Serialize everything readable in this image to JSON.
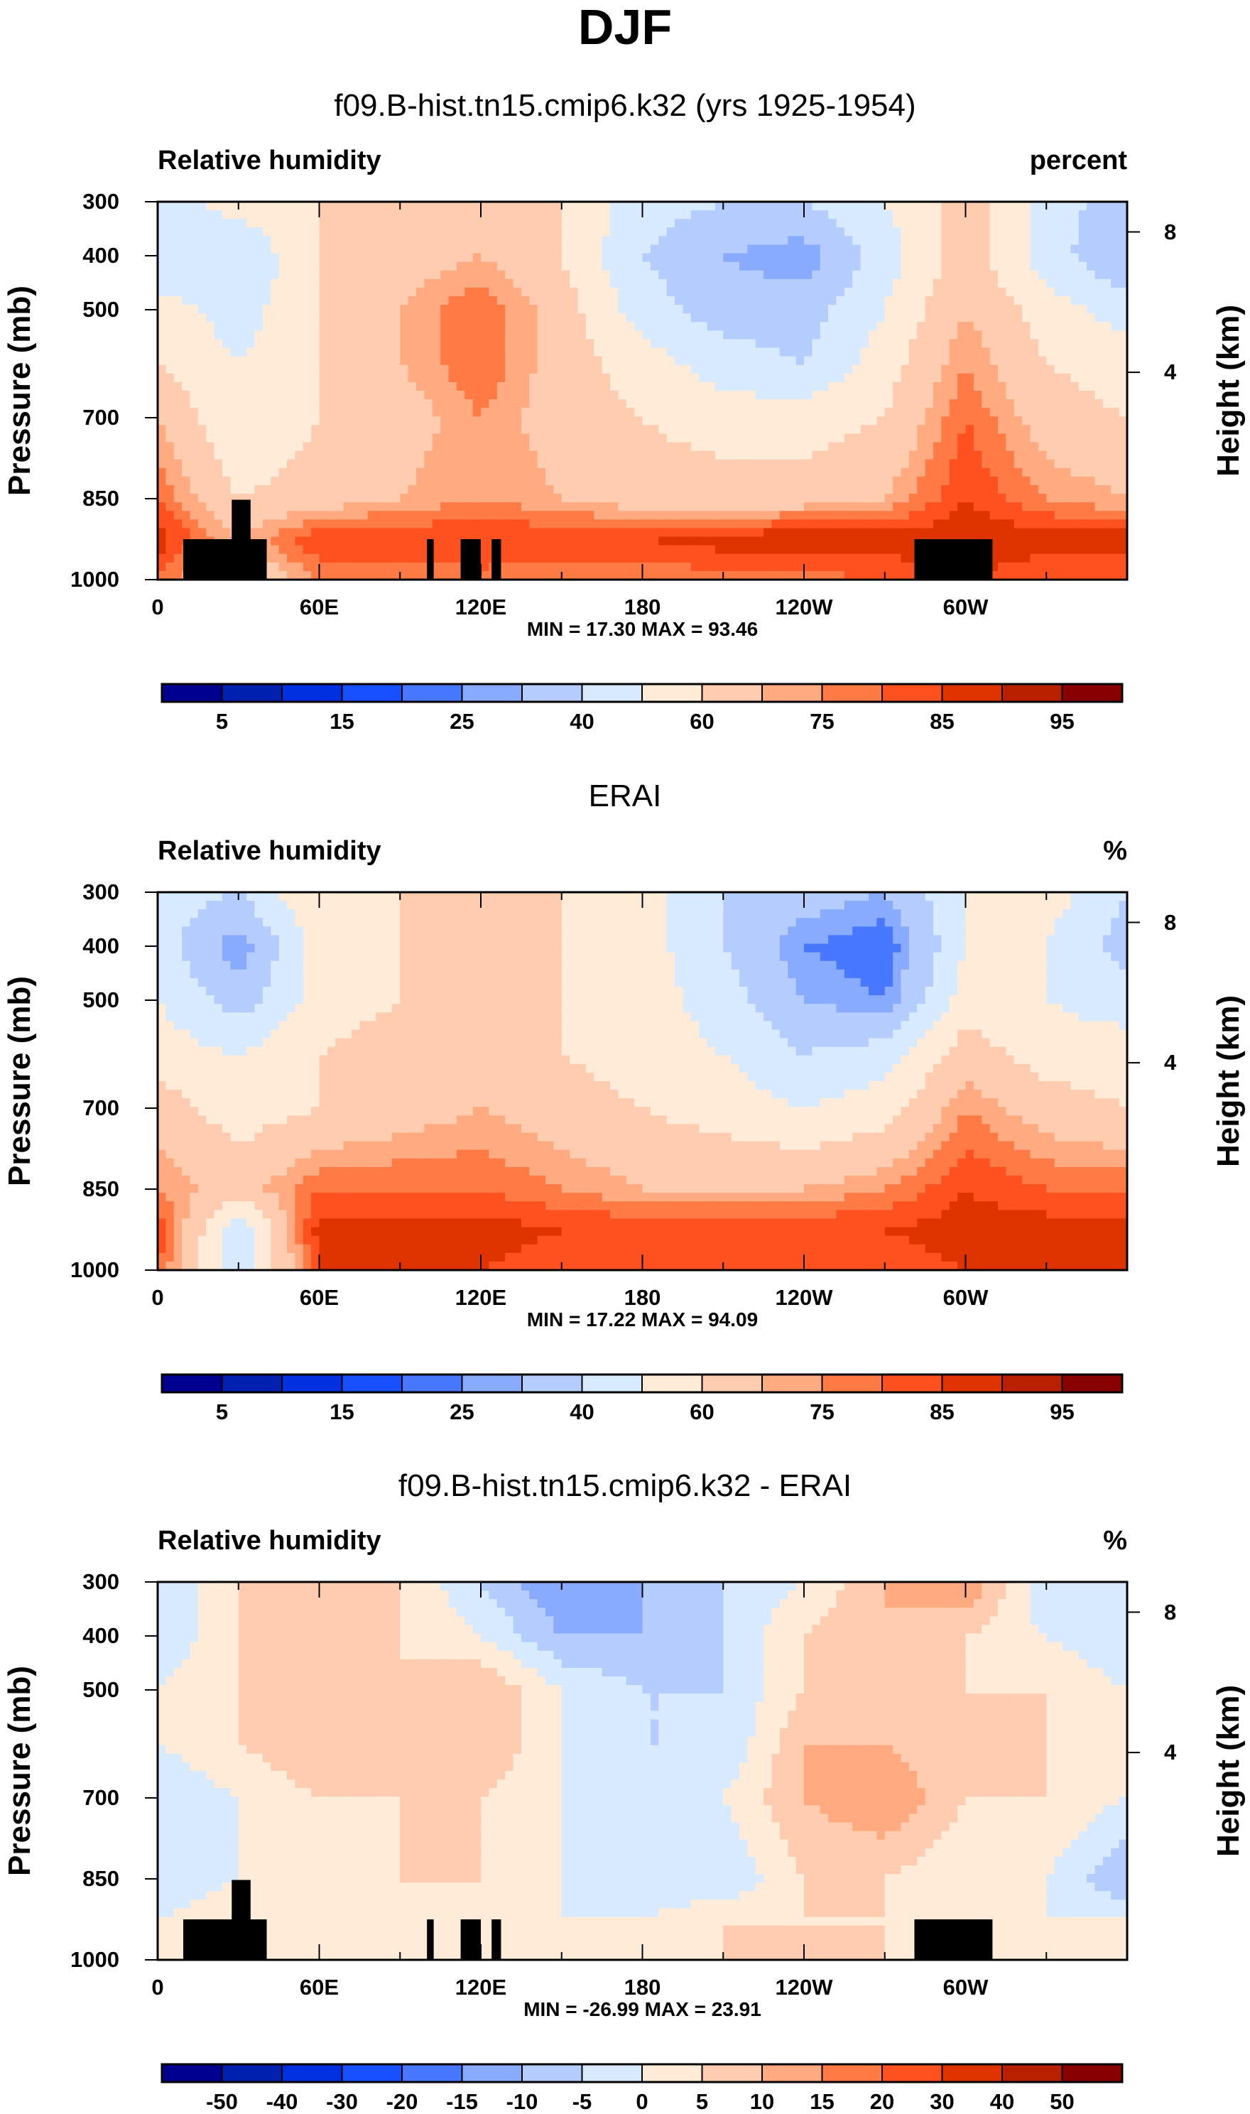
{
  "title": "DJF",
  "colors": [
    "#000090",
    "#0020B0",
    "#0030E0",
    "#1850FF",
    "#4878FF",
    "#88AAFF",
    "#B5CCFF",
    "#D8EAFF",
    "#FFEBD8",
    "#FFCCB0",
    "#FFAA80",
    "#FF7A45",
    "#FF5020",
    "#E03400",
    "#B82000",
    "#880000"
  ],
  "chart_data": [
    {
      "type": "heatmap",
      "title": "f09.B-hist.tn15.cmip6.k32 (yrs 1925-1954)",
      "left_label": "Relative humidity",
      "right_label": "percent",
      "ylabel": "Pressure (mb)",
      "ylabel_right": "Height (km)",
      "minmax": "MIN = 17.30  MAX = 93.46",
      "x_ticks": [
        "0",
        "60E",
        "120E",
        "180",
        "120W",
        "60W"
      ],
      "y_ticks": [
        "300",
        "400",
        "500",
        "700",
        "850",
        "1000"
      ],
      "y_right_ticks": [
        "8",
        "4"
      ],
      "levels": [
        5,
        10,
        15,
        20,
        25,
        30,
        40,
        50,
        60,
        70,
        75,
        80,
        85,
        90,
        95
      ],
      "colorbar_labels": [
        "5",
        "15",
        "25",
        "40",
        "60",
        "75",
        "85",
        "95"
      ],
      "lon": [
        0,
        30,
        60,
        90,
        120,
        150,
        180,
        210,
        240,
        270,
        300,
        330,
        360
      ],
      "pressure": [
        300,
        400,
        500,
        600,
        700,
        850,
        925,
        1000
      ],
      "values": [
        [
          45,
          55,
          60,
          60,
          65,
          60,
          45,
          40,
          40,
          50,
          65,
          45,
          35
        ],
        [
          40,
          40,
          60,
          65,
          70,
          60,
          40,
          30,
          25,
          45,
          65,
          45,
          30
        ],
        [
          55,
          45,
          60,
          70,
          80,
          65,
          45,
          35,
          35,
          50,
          70,
          55,
          45
        ],
        [
          60,
          50,
          60,
          70,
          80,
          65,
          55,
          45,
          40,
          55,
          75,
          60,
          55
        ],
        [
          70,
          50,
          60,
          65,
          75,
          65,
          60,
          55,
          55,
          60,
          80,
          65,
          60
        ],
        [
          80,
          60,
          65,
          70,
          75,
          70,
          65,
          65,
          65,
          70,
          85,
          75,
          70
        ],
        [
          88,
          70,
          85,
          85,
          85,
          85,
          85,
          88,
          90,
          88,
          90,
          88,
          88
        ],
        [
          80,
          60,
          75,
          75,
          78,
          75,
          75,
          78,
          78,
          80,
          85,
          80,
          80
        ]
      ],
      "terrain": [
        [
          9.5,
          40.5,
          925
        ],
        [
          27.5,
          34.5,
          852
        ],
        [
          100,
          102.5,
          925
        ],
        [
          112.5,
          120,
          925
        ],
        [
          124,
          127.5,
          925
        ],
        [
          281,
          310,
          925
        ]
      ]
    },
    {
      "type": "heatmap",
      "title": "ERAI",
      "left_label": "Relative humidity",
      "right_label": "%",
      "ylabel": "Pressure (mb)",
      "ylabel_right": "Height (km)",
      "minmax": "MIN = 17.22  MAX = 94.09",
      "x_ticks": [
        "0",
        "60E",
        "120E",
        "180",
        "120W",
        "60W"
      ],
      "y_ticks": [
        "300",
        "400",
        "500",
        "700",
        "850",
        "1000"
      ],
      "y_right_ticks": [
        "8",
        "4"
      ],
      "levels": [
        5,
        10,
        15,
        20,
        25,
        30,
        40,
        50,
        60,
        70,
        75,
        80,
        85,
        90,
        95
      ],
      "colorbar_labels": [
        "5",
        "15",
        "25",
        "40",
        "60",
        "75",
        "85",
        "95"
      ],
      "lon": [
        0,
        30,
        60,
        90,
        120,
        150,
        180,
        210,
        240,
        270,
        300,
        330,
        360
      ],
      "pressure": [
        300,
        400,
        500,
        600,
        700,
        850,
        925,
        1000
      ],
      "values": [
        [
          45,
          40,
          60,
          60,
          60,
          60,
          55,
          40,
          35,
          30,
          50,
          55,
          40
        ],
        [
          45,
          25,
          55,
          60,
          65,
          60,
          55,
          40,
          25,
          20,
          50,
          50,
          35
        ],
        [
          50,
          35,
          55,
          60,
          65,
          60,
          55,
          45,
          30,
          25,
          55,
          50,
          45
        ],
        [
          55,
          50,
          60,
          65,
          65,
          60,
          55,
          50,
          40,
          45,
          65,
          55,
          55
        ],
        [
          65,
          55,
          60,
          65,
          70,
          65,
          60,
          55,
          50,
          55,
          75,
          65,
          60
        ],
        [
          75,
          65,
          80,
          80,
          80,
          75,
          70,
          70,
          70,
          75,
          85,
          80,
          80
        ],
        [
          85,
          40,
          88,
          88,
          88,
          85,
          85,
          85,
          85,
          85,
          88,
          88,
          88
        ],
        [
          80,
          40,
          85,
          85,
          85,
          82,
          82,
          82,
          82,
          82,
          85,
          85,
          85
        ]
      ],
      "terrain": []
    },
    {
      "type": "heatmap",
      "title": "f09.B-hist.tn15.cmip6.k32 - ERAI",
      "left_label": "Relative humidity",
      "right_label": "%",
      "ylabel": "Pressure (mb)",
      "ylabel_right": "Height (km)",
      "minmax": "MIN = -26.99  MAX = 23.91",
      "x_ticks": [
        "0",
        "60E",
        "120E",
        "180",
        "120W",
        "60W"
      ],
      "y_ticks": [
        "300",
        "400",
        "500",
        "700",
        "850",
        "1000"
      ],
      "y_right_ticks": [
        "8",
        "4"
      ],
      "levels": [
        -50,
        -40,
        -30,
        -20,
        -15,
        -10,
        -5,
        0,
        5,
        10,
        15,
        20,
        30,
        40,
        50
      ],
      "colorbar_labels": [
        "-50",
        "-40",
        "-30",
        "-20",
        "-15",
        "-10",
        "-5",
        "0",
        "5",
        "10",
        "15",
        "20",
        "30",
        "40",
        "50"
      ],
      "lon": [
        0,
        30,
        60,
        90,
        120,
        150,
        180,
        210,
        240,
        270,
        300,
        330,
        360
      ],
      "pressure": [
        300,
        400,
        500,
        600,
        700,
        850,
        925,
        1000
      ],
      "values": [
        [
          -5,
          5,
          10,
          5,
          -5,
          -15,
          -10,
          -5,
          0,
          10,
          15,
          -5,
          -5
        ],
        [
          -5,
          5,
          5,
          5,
          0,
          -10,
          -10,
          -5,
          5,
          10,
          5,
          0,
          -5
        ],
        [
          0,
          5,
          10,
          5,
          10,
          0,
          -5,
          -5,
          5,
          10,
          5,
          5,
          0
        ],
        [
          0,
          5,
          10,
          5,
          10,
          0,
          -5,
          -5,
          10,
          10,
          5,
          5,
          5
        ],
        [
          -5,
          0,
          5,
          5,
          5,
          0,
          -5,
          0,
          10,
          15,
          5,
          5,
          0
        ],
        [
          -5,
          0,
          0,
          5,
          5,
          0,
          -5,
          -5,
          5,
          5,
          0,
          0,
          -10
        ],
        [
          0,
          5,
          0,
          0,
          0,
          0,
          0,
          5,
          5,
          5,
          0,
          0,
          0
        ],
        [
          0,
          5,
          0,
          0,
          0,
          0,
          0,
          5,
          5,
          5,
          0,
          0,
          0
        ]
      ],
      "terrain": [
        [
          9.5,
          40.5,
          925
        ],
        [
          27.5,
          34.5,
          852
        ],
        [
          100,
          102.5,
          925
        ],
        [
          112.5,
          120,
          925
        ],
        [
          124,
          127.5,
          925
        ],
        [
          281,
          310,
          925
        ]
      ]
    }
  ]
}
